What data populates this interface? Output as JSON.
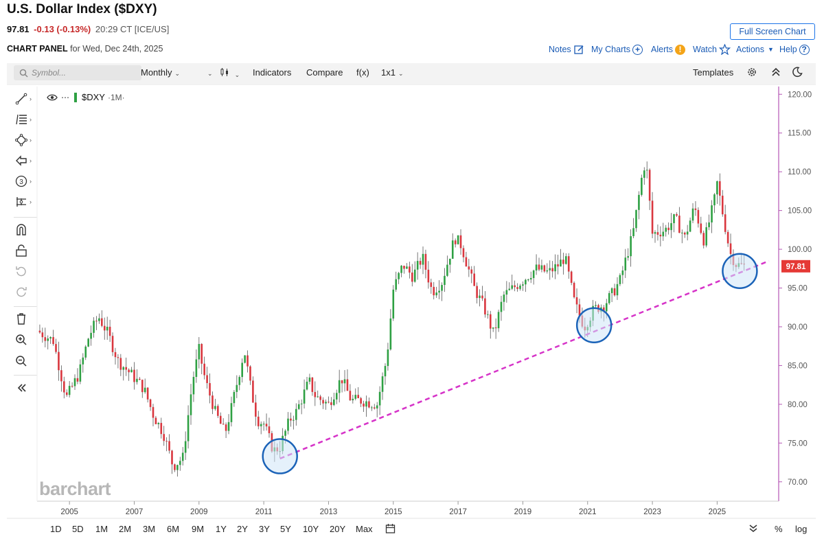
{
  "header": {
    "title": "U.S. Dollar Index ($DXY)",
    "last": "97.81",
    "change": "-0.13 (-0.13%)",
    "time": "20:29 CT [ICE/US]",
    "panel_label": "CHART PANEL",
    "panel_date": "for Wed, Dec 24th, 2025",
    "fullscreen_label": "Full Screen Chart",
    "links": {
      "notes": "Notes",
      "my_charts": "My Charts",
      "alerts": "Alerts",
      "watch": "Watch",
      "actions": "Actions",
      "help": "Help"
    }
  },
  "toolbar": {
    "search_placeholder": "Symbol...",
    "interval": "Monthly",
    "indicators": "Indicators",
    "compare": "Compare",
    "fx": "f(x)",
    "layout": "1x1",
    "templates": "Templates"
  },
  "legend": {
    "symbol": "$DXY",
    "interval": "·1M·"
  },
  "watermark": "barchart",
  "ranges": [
    "1D",
    "5D",
    "1M",
    "2M",
    "3M",
    "6M",
    "9M",
    "1Y",
    "2Y",
    "3Y",
    "5Y",
    "10Y",
    "20Y",
    "Max"
  ],
  "bottom_right": {
    "percent": "%",
    "log": "log"
  },
  "colors": {
    "up": "#2ea043",
    "down": "#d9363e",
    "trendline": "#d633c8",
    "circle_fill": "#cfe6f7",
    "circle_stroke": "#1b63b8",
    "price_tag": "#e53935",
    "axis_line": "#b455b4"
  },
  "chart_data": {
    "type": "candlestick",
    "symbol": "$DXY",
    "interval": "1M",
    "yticks": [
      "120.00",
      "115.00",
      "110.00",
      "105.00",
      "100.00",
      "95.00",
      "90.00",
      "85.00",
      "80.00",
      "75.00",
      "70.00"
    ],
    "xticks": [
      "2005",
      "2007",
      "2009",
      "2011",
      "2013",
      "2015",
      "2017",
      "2019",
      "2021",
      "2023",
      "2025"
    ],
    "last_price_label": "97.81",
    "ylim": [
      67.5,
      121
    ],
    "xlim": [
      2004.0,
      2026.9
    ],
    "closes": [
      [
        2004.0,
        89.5
      ],
      [
        2004.5,
        88.2
      ],
      [
        2004.9,
        80.8
      ],
      [
        2005.3,
        84.0
      ],
      [
        2005.6,
        88.8
      ],
      [
        2005.9,
        91.3
      ],
      [
        2006.2,
        89.0
      ],
      [
        2006.5,
        85.6
      ],
      [
        2006.9,
        83.9
      ],
      [
        2007.3,
        82.0
      ],
      [
        2007.6,
        78.5
      ],
      [
        2007.9,
        76.3
      ],
      [
        2008.2,
        72.0
      ],
      [
        2008.5,
        73.1
      ],
      [
        2008.8,
        83.0
      ],
      [
        2009.0,
        87.0
      ],
      [
        2009.2,
        83.0
      ],
      [
        2009.5,
        79.0
      ],
      [
        2009.8,
        76.2
      ],
      [
        2010.0,
        79.5
      ],
      [
        2010.4,
        87.0
      ],
      [
        2010.6,
        82.0
      ],
      [
        2010.8,
        78.0
      ],
      [
        2011.0,
        77.5
      ],
      [
        2011.3,
        74.0
      ],
      [
        2011.5,
        74.5
      ],
      [
        2011.8,
        78.0
      ],
      [
        2012.0,
        79.0
      ],
      [
        2012.4,
        83.0
      ],
      [
        2012.6,
        81.0
      ],
      [
        2013.0,
        80.0
      ],
      [
        2013.4,
        83.4
      ],
      [
        2013.7,
        80.5
      ],
      [
        2014.0,
        80.5
      ],
      [
        2014.5,
        80.0
      ],
      [
        2014.8,
        86.0
      ],
      [
        2015.0,
        94.8
      ],
      [
        2015.3,
        98.0
      ],
      [
        2015.6,
        96.5
      ],
      [
        2015.9,
        99.0
      ],
      [
        2016.2,
        94.5
      ],
      [
        2016.5,
        95.8
      ],
      [
        2016.9,
        101.5
      ],
      [
        2017.1,
        100.5
      ],
      [
        2017.5,
        95.0
      ],
      [
        2017.8,
        92.5
      ],
      [
        2018.1,
        89.0
      ],
      [
        2018.4,
        94.0
      ],
      [
        2018.7,
        95.0
      ],
      [
        2019.0,
        96.0
      ],
      [
        2019.4,
        97.5
      ],
      [
        2019.8,
        97.0
      ],
      [
        2020.1,
        98.0
      ],
      [
        2020.3,
        99.0
      ],
      [
        2020.6,
        93.0
      ],
      [
        2020.9,
        90.0
      ],
      [
        2021.2,
        92.3
      ],
      [
        2021.5,
        92.8
      ],
      [
        2021.8,
        94.5
      ],
      [
        2022.0,
        96.0
      ],
      [
        2022.4,
        102.0
      ],
      [
        2022.7,
        110.0
      ],
      [
        2022.8,
        111.5
      ],
      [
        2023.0,
        102.0
      ],
      [
        2023.4,
        102.5
      ],
      [
        2023.7,
        104.0
      ],
      [
        2024.0,
        101.5
      ],
      [
        2024.3,
        105.5
      ],
      [
        2024.6,
        101.0
      ],
      [
        2024.9,
        106.0
      ],
      [
        2025.0,
        108.5
      ],
      [
        2025.2,
        104.0
      ],
      [
        2025.4,
        99.5
      ],
      [
        2025.6,
        98.0
      ],
      [
        2025.9,
        97.81
      ]
    ],
    "annotations": {
      "trendline": [
        [
          2011.5,
          73.0
        ],
        [
          2026.6,
          98.5
        ]
      ],
      "circles": [
        [
          2011.5,
          73.3
        ],
        [
          2021.2,
          90.2
        ],
        [
          2025.7,
          97.2
        ]
      ]
    }
  }
}
